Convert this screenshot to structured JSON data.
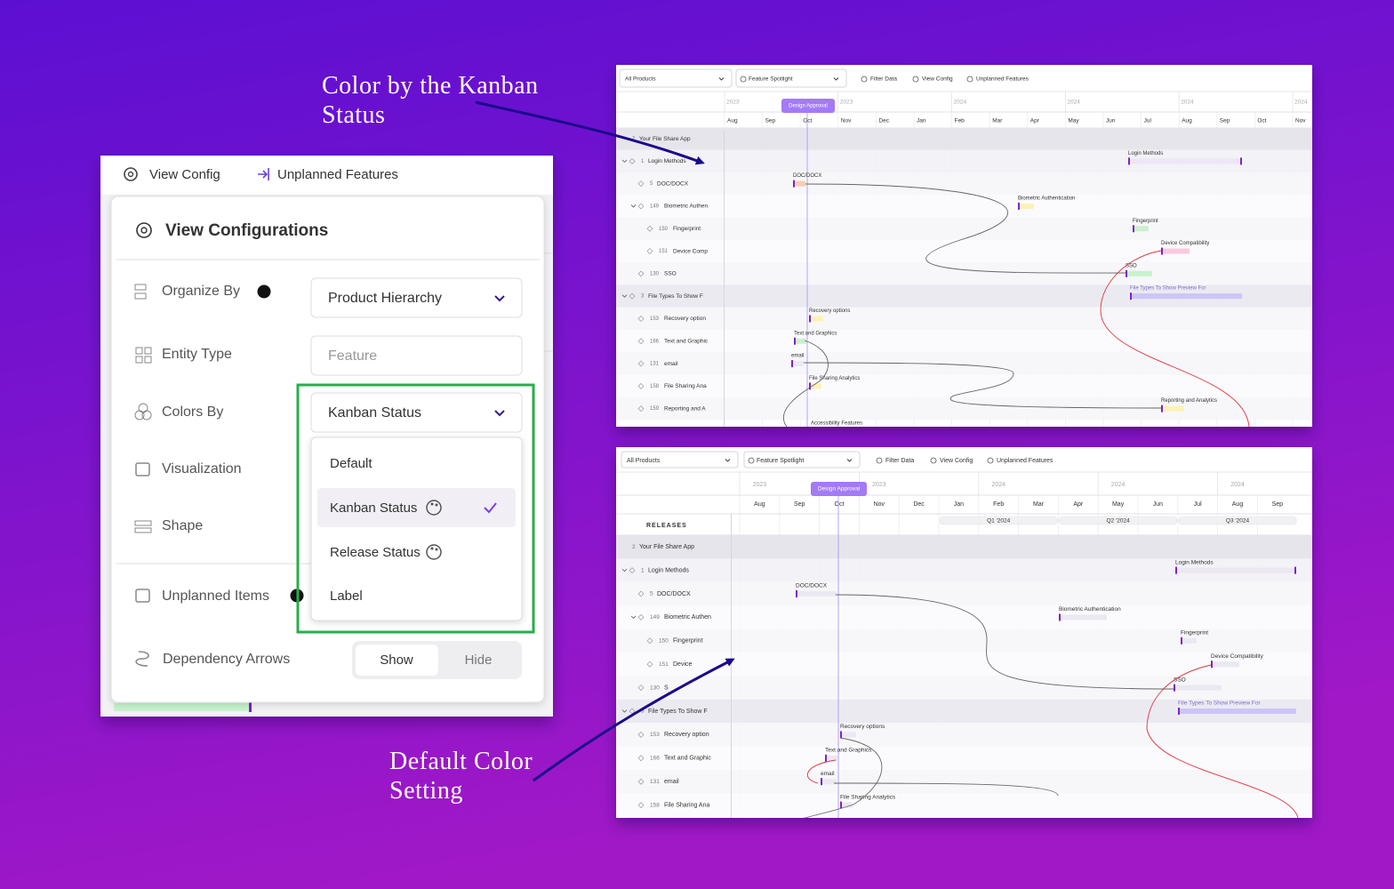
{
  "annotations": [
    "Color by the Kanban Status",
    "Default Color Setting"
  ],
  "config": {
    "toolbar": [
      "View Config",
      "Unplanned Features"
    ],
    "title": "View Configurations",
    "fields": [
      {
        "label": "Organize By",
        "value": "Product Hierarchy"
      },
      {
        "label": "Entity Type",
        "value": "Feature"
      },
      {
        "label": "Colors By",
        "value": "Kanban Status"
      },
      {
        "label": "Visualization"
      },
      {
        "label": "Shape"
      },
      {
        "label": "Unplanned Items"
      },
      {
        "label": "Dependency Arrows"
      }
    ],
    "color_options": [
      "Default",
      "Kanban Status",
      "Release Status",
      "Label"
    ],
    "toggle": [
      "Show",
      "Hide"
    ]
  },
  "gantt_kanban": {
    "toolbar": [
      "All Products",
      "Feature Spotlight",
      "Filter Data",
      "View Config",
      "Unplanned Features"
    ],
    "milestone": "Design Approval",
    "years": [
      "2023",
      "2023",
      "2024",
      "2024",
      "2024",
      "2024"
    ],
    "months": [
      "Aug",
      "Sep",
      "Oct",
      "Nov",
      "Dec",
      "Jan",
      "Feb",
      "Mar",
      "Apr",
      "May",
      "Jun",
      "Jul",
      "Aug",
      "Sep",
      "Oct",
      "Nov"
    ],
    "rows": [
      {
        "id": "2",
        "name": "Your File Share App"
      },
      {
        "id": "1",
        "name": "Login Methods"
      },
      {
        "id": "5",
        "name": "DOC/DOCX"
      },
      {
        "id": "149",
        "name": "Biometric Authen"
      },
      {
        "id": "150",
        "name": "Fingerprint"
      },
      {
        "id": "151",
        "name": "Device Comp"
      },
      {
        "id": "130",
        "name": "SSO"
      },
      {
        "id": "3",
        "name": "File Types To Show F"
      },
      {
        "id": "153",
        "name": "Recovery option"
      },
      {
        "id": "166",
        "name": "Text and Graphic"
      },
      {
        "id": "131",
        "name": "email"
      },
      {
        "id": "158",
        "name": "File Sharing Ana"
      },
      {
        "id": "159",
        "name": "Reporting and A"
      }
    ],
    "bars": [
      "Login Methods",
      "DOC/DOCX",
      "Biometric Authentication",
      "Fingerprint",
      "Device Compatibility",
      "SSO",
      "File Types To Show Preview For",
      "Recovery options",
      "Text and Graphics",
      "email",
      "File Sharing Analytics",
      "Reporting and Analytics",
      "Accessibility Features"
    ]
  },
  "gantt_default": {
    "toolbar": [
      "All Products",
      "Feature Spotlight",
      "Filter Data",
      "View Config",
      "Unplanned Features"
    ],
    "milestone": "Design Approval",
    "years": [
      "2023",
      "2023",
      "2024",
      "2024",
      "2024"
    ],
    "months": [
      "Aug",
      "Sep",
      "Oct",
      "Nov",
      "Dec",
      "Jan",
      "Feb",
      "Mar",
      "Apr",
      "May",
      "Jun",
      "Jul",
      "Aug",
      "Sep"
    ],
    "releases_label": "RELEASES",
    "releases": [
      "Q1 '2024",
      "Q2 '2024",
      "Q3 '2024"
    ],
    "rows": [
      {
        "id": "2",
        "name": "Your File Share App"
      },
      {
        "id": "1",
        "name": "Login Methods"
      },
      {
        "id": "5",
        "name": "DOC/DOCX"
      },
      {
        "id": "149",
        "name": "Biometric Authen"
      },
      {
        "id": "150",
        "name": "Fingerprint"
      },
      {
        "id": "151",
        "name": "Device"
      },
      {
        "id": "130",
        "name": "S"
      },
      {
        "id": "3",
        "name": "File Types To Show F"
      },
      {
        "id": "153",
        "name": "Recovery option"
      },
      {
        "id": "166",
        "name": "Text and Graphic"
      },
      {
        "id": "131",
        "name": "email"
      },
      {
        "id": "158",
        "name": "File Sharing Ana"
      }
    ],
    "bars": [
      "Login Methods",
      "DOC/DOCX",
      "Biometric Authentication",
      "Fingerprint",
      "Device Compatibility",
      "SSO",
      "File Types To Show Preview For",
      "Recovery options",
      "Text and Graphics",
      "email",
      "File Sharing Analytics"
    ]
  }
}
